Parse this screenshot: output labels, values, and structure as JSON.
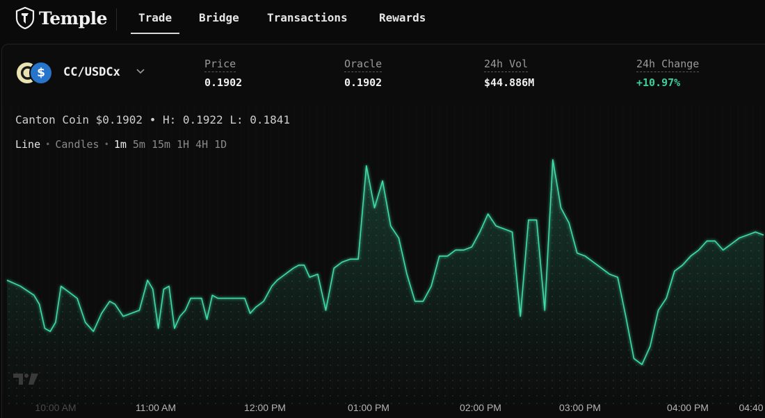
{
  "app": {
    "logo_text": "Temple"
  },
  "nav": {
    "tabs": [
      {
        "label": "Trade"
      },
      {
        "label": "Bridge"
      },
      {
        "label": "Transactions"
      },
      {
        "label": "Rewards"
      }
    ]
  },
  "market": {
    "pair": "CC/USDCx",
    "usdc_glyph": "$"
  },
  "stats": [
    {
      "label": "Price",
      "value": "0.1902"
    },
    {
      "label": "Oracle",
      "value": "0.1902"
    },
    {
      "label": "24h Vol",
      "value": "$44.886M"
    },
    {
      "label": "24h Change",
      "value": "+10.97%"
    }
  ],
  "chart_header": {
    "name": "Canton Coin",
    "price": "$0.1902",
    "sep": "•",
    "high_label": "H:",
    "high": "0.1922",
    "low_label": "L:",
    "low": "0.1841"
  },
  "chart_modes": {
    "line": "Line",
    "candles": "Candles",
    "sep": "•",
    "timeframes": [
      "1m",
      "5m",
      "15m",
      "1H",
      "4H",
      "1D"
    ],
    "active_timeframe": "1m"
  },
  "colors": {
    "accent": "#3ecf9b",
    "line": "#3fdba8",
    "positive": "#3ecf9b"
  },
  "chart_data": {
    "type": "area",
    "x_ticks": [
      "10:00 AM",
      "11:00 AM",
      "12:00 PM",
      "01:00 PM",
      "02:00 PM",
      "03:00 PM",
      "04:00 PM",
      "04:40"
    ],
    "x_minutes": [
      0,
      5,
      10,
      12,
      14,
      16,
      18,
      20,
      23,
      26,
      29,
      32,
      35,
      38,
      40,
      43,
      46,
      49,
      52,
      54,
      56,
      58,
      60,
      62,
      64,
      66,
      68,
      70,
      72,
      74,
      76,
      78,
      80,
      82,
      84,
      86,
      88,
      90,
      92,
      95,
      98,
      100,
      103,
      106,
      108,
      110,
      112,
      115,
      118,
      121,
      124,
      127,
      130,
      133,
      136,
      139,
      142,
      145,
      148,
      151,
      154,
      157,
      160,
      163,
      166,
      169,
      172,
      175,
      178,
      181,
      184,
      187,
      190,
      193,
      196,
      199,
      202,
      205,
      208,
      211,
      214,
      217,
      220,
      223,
      226,
      229,
      232,
      235,
      238,
      241,
      244,
      247,
      250,
      253,
      256,
      259,
      262,
      265,
      268,
      271,
      274,
      277,
      280
    ],
    "values": [
      0.1872,
      0.187,
      0.1867,
      0.1864,
      0.1856,
      0.1855,
      0.1858,
      0.187,
      0.1868,
      0.1866,
      0.1858,
      0.1855,
      0.1861,
      0.1865,
      0.1864,
      0.186,
      0.1861,
      0.1862,
      0.1872,
      0.1869,
      0.1856,
      0.1869,
      0.187,
      0.1856,
      0.186,
      0.1862,
      0.1866,
      0.1866,
      0.1866,
      0.1859,
      0.1867,
      0.1866,
      0.1866,
      0.1866,
      0.1866,
      0.1866,
      0.1866,
      0.1861,
      0.1863,
      0.1865,
      0.187,
      0.1872,
      0.1874,
      0.1876,
      0.1877,
      0.1877,
      0.1873,
      0.1874,
      0.1862,
      0.1876,
      0.1878,
      0.1879,
      0.1879,
      0.191,
      0.1896,
      0.1905,
      0.189,
      0.1886,
      0.1874,
      0.1865,
      0.1865,
      0.187,
      0.188,
      0.188,
      0.1882,
      0.1882,
      0.1883,
      0.1888,
      0.1894,
      0.189,
      0.1889,
      0.1888,
      0.186,
      0.1892,
      0.1892,
      0.1862,
      0.1912,
      0.1896,
      0.1891,
      0.1881,
      0.188,
      0.1878,
      0.1876,
      0.1874,
      0.1873,
      0.186,
      0.1846,
      0.1844,
      0.185,
      0.1862,
      0.1866,
      0.1875,
      0.1877,
      0.188,
      0.1882,
      0.1885,
      0.1885,
      0.1882,
      0.1884,
      0.1886,
      0.1887,
      0.1888,
      0.1887
    ],
    "xlabel": "",
    "ylabel": "",
    "grid": true,
    "legend": "none"
  }
}
